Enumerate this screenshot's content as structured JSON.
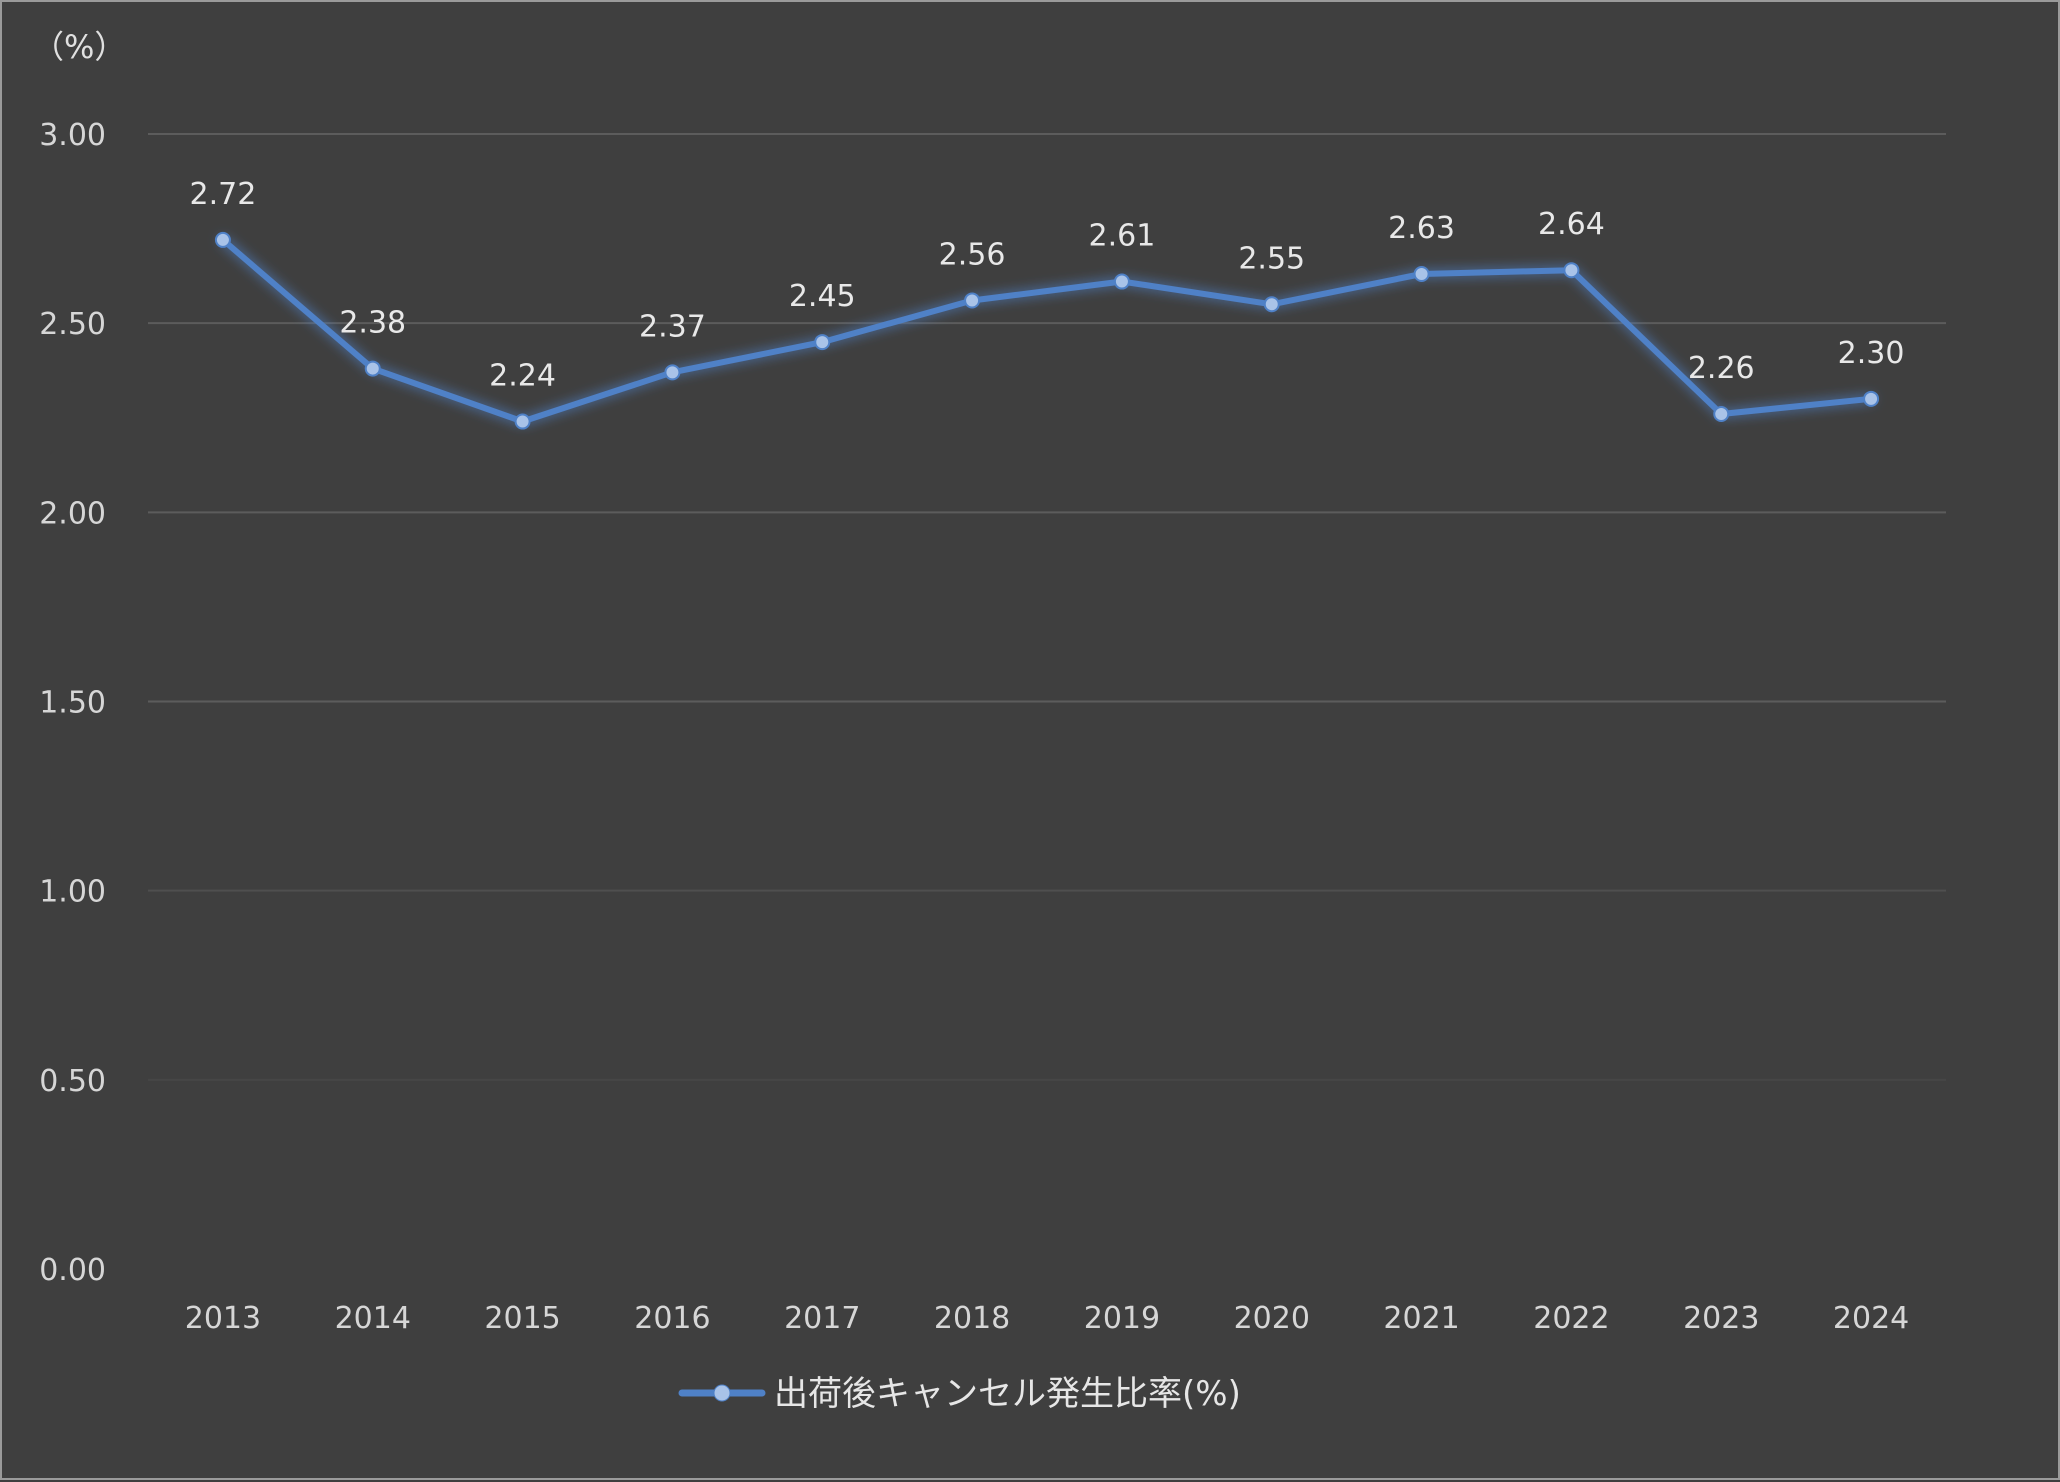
{
  "chart_data": {
    "type": "line",
    "unit_label": "（%）",
    "categories": [
      "2013",
      "2014",
      "2015",
      "2016",
      "2017",
      "2018",
      "2019",
      "2020",
      "2021",
      "2022",
      "2023",
      "2024"
    ],
    "series": [
      {
        "name": "出荷後キャンセル発生比率(%)",
        "values": [
          2.72,
          2.38,
          2.24,
          2.37,
          2.45,
          2.56,
          2.61,
          2.55,
          2.63,
          2.64,
          2.26,
          2.3
        ],
        "value_labels": [
          "2.72",
          "2.38",
          "2.24",
          "2.37",
          "2.45",
          "2.56",
          "2.61",
          "2.55",
          "2.63",
          "2.64",
          "2.26",
          "2.30"
        ],
        "color": "#4f81c7",
        "marker_color": "#a9c3e8"
      }
    ],
    "y_ticks": [
      "0.00",
      "0.50",
      "1.00",
      "1.50",
      "2.00",
      "2.50",
      "3.00"
    ],
    "ylim": [
      0,
      3
    ],
    "grid": true,
    "legend_position": "bottom",
    "background_color": "#3f3f3f",
    "grid_color": "#5c5c5c",
    "text_color": "#d6d6d6"
  }
}
